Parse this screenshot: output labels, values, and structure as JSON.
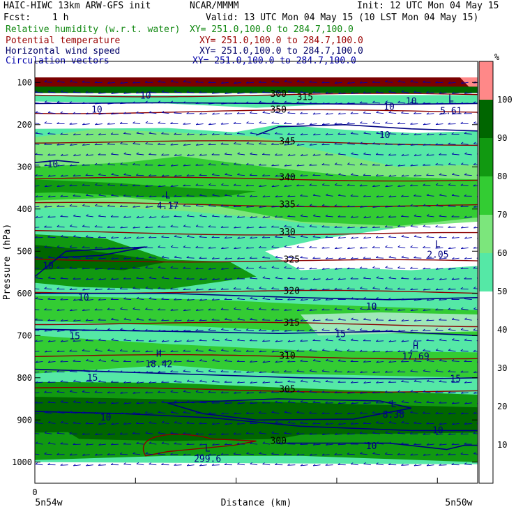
{
  "header": {
    "title_left": "HAIC-HIWC 13km ARW-GFS init",
    "org": "NCAR/MMMM",
    "init": "Init: 12 UTC Mon 04 May 15",
    "fcst_label": "Fcst:",
    "fcst_value": "1 h",
    "valid": "Valid: 13 UTC Mon 04 May 15 (10 LST Mon 04 May 15)"
  },
  "legend_rows": [
    {
      "name": "Relative humidity (w.r.t. water)",
      "xy": "XY= 251.0,100.0 to 284.7,100.0",
      "color": "#118811"
    },
    {
      "name": "Potential temperature",
      "xy": "XY= 251.0,100.0 to 284.7,100.0",
      "color": "#990000"
    },
    {
      "name": "Horizontal wind speed",
      "xy": "XY= 251.0,100.0 to 284.7,100.0",
      "color": "#000066"
    },
    {
      "name": "Circulation vectors",
      "xy": "XY= 251.0,100.0 to 284.7,100.0",
      "color": "#0000aa"
    }
  ],
  "colors": {
    "rh_bands": [
      "#ffffff",
      "#ffffff",
      "#ffffff",
      "#ffffff",
      "#ffffff",
      "#55e8a6",
      "#7ce67c",
      "#33cc33",
      "#119911",
      "#006600",
      "#ff8888"
    ],
    "theta_contour": "#8b0000",
    "wind_contour": "#000080",
    "vectors": "#0000aa"
  },
  "chart_data": {
    "type": "heatmap",
    "xlabel": "Distance (km)",
    "ylabel": "Pressure (hPa)",
    "x_left_label": "5n54w",
    "x_right_label": "5n50w",
    "x_ticks": [
      "0"
    ],
    "y_ticks": [
      100,
      200,
      300,
      400,
      500,
      600,
      700,
      800,
      900,
      1000
    ],
    "ylim": [
      1050,
      50
    ],
    "colorbar": {
      "unit": "%",
      "ticks": [
        10,
        20,
        30,
        40,
        50,
        60,
        70,
        80,
        90,
        100
      ]
    },
    "theta_labels": [
      {
        "value": "300",
        "p": 128,
        "x": 0.55
      },
      {
        "value": "350",
        "p": 165,
        "x": 0.55
      },
      {
        "value": "345",
        "p": 240,
        "x": 0.57
      },
      {
        "value": "340",
        "p": 325,
        "x": 0.57
      },
      {
        "value": "335",
        "p": 390,
        "x": 0.57
      },
      {
        "value": "330",
        "p": 455,
        "x": 0.57
      },
      {
        "value": "325",
        "p": 520,
        "x": 0.58
      },
      {
        "value": "320",
        "p": 595,
        "x": 0.58
      },
      {
        "value": "315",
        "p": 670,
        "x": 0.58
      },
      {
        "value": "310",
        "p": 748,
        "x": 0.57
      },
      {
        "value": "305",
        "p": 828,
        "x": 0.57
      },
      {
        "value": "300",
        "p": 950,
        "x": 0.55
      },
      {
        "value": "315",
        "p": 135,
        "x": 0.61
      }
    ],
    "wind_labels": [
      {
        "value": "10",
        "p": 132,
        "x": 0.25
      },
      {
        "value": "10",
        "p": 145,
        "x": 0.85
      },
      {
        "value": "10",
        "p": 158,
        "x": 0.8
      },
      {
        "value": "10",
        "p": 165,
        "x": 0.14
      },
      {
        "value": "10",
        "p": 225,
        "x": 0.79
      },
      {
        "value": "10",
        "p": 295,
        "x": 0.04
      },
      {
        "value": "10",
        "p": 535,
        "x": 0.03
      },
      {
        "value": "10",
        "p": 610,
        "x": 0.11
      },
      {
        "value": "10",
        "p": 632,
        "x": 0.76
      },
      {
        "value": "15",
        "p": 702,
        "x": 0.09
      },
      {
        "value": "15",
        "p": 697,
        "x": 0.69
      },
      {
        "value": "15",
        "p": 800,
        "x": 0.13
      },
      {
        "value": "15",
        "p": 803,
        "x": 0.95
      },
      {
        "value": "10",
        "p": 895,
        "x": 0.16
      },
      {
        "value": "10",
        "p": 925,
        "x": 0.91
      },
      {
        "value": "10",
        "p": 962,
        "x": 0.76
      }
    ],
    "extrema": [
      {
        "mark": "L",
        "value": "4.17",
        "p": 385,
        "x": 0.3
      },
      {
        "mark": "L",
        "value": "2.05",
        "p": 500,
        "x": 0.91
      },
      {
        "mark": "L",
        "value": "5.61",
        "p": 160,
        "x": 0.94
      },
      {
        "mark": "H",
        "value": "18.42",
        "p": 760,
        "x": 0.28
      },
      {
        "mark": "H",
        "value": "17.69",
        "p": 742,
        "x": 0.86
      },
      {
        "mark": "L",
        "value": "8.38",
        "p": 880,
        "x": 0.81
      },
      {
        "mark": "L",
        "value": "299.6",
        "p": 985,
        "x": 0.39
      },
      {
        "mark": "L",
        "value": "",
        "p": 155,
        "x": 0.94
      }
    ]
  }
}
